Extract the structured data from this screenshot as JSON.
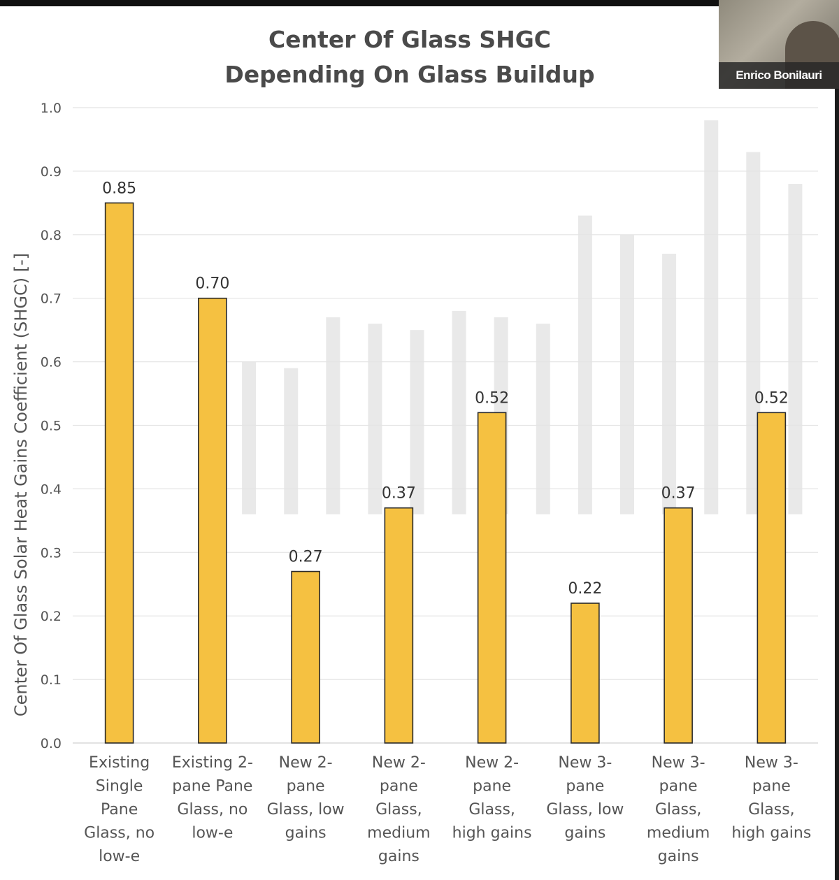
{
  "title_line1": "Center Of Glass SHGC",
  "title_line2": "Depending On Glass Buildup",
  "webcam": {
    "participant_name": "Enrico Bonilauri"
  },
  "chart_data": {
    "type": "bar",
    "title": "Center Of Glass SHGC Depending On Glass Buildup",
    "ylabel": "Center Of Glass Solar Heat Gains Coefficient (SHGC) [-]",
    "xlabel": "",
    "ylim": [
      0,
      1.0
    ],
    "yticks": [
      "0.0",
      "0.1",
      "0.2",
      "0.3",
      "0.4",
      "0.5",
      "0.6",
      "0.7",
      "0.8",
      "0.9",
      "1.0"
    ],
    "grid": true,
    "categories": [
      [
        "Existing",
        "Single",
        "Pane",
        "Glass, no",
        "low-e"
      ],
      [
        "Existing 2-",
        "pane Pane",
        "Glass, no",
        "low-e"
      ],
      [
        "New 2-",
        "pane",
        "Glass, low",
        "gains"
      ],
      [
        "New 2-",
        "pane",
        "Glass,",
        "medium",
        "gains"
      ],
      [
        "New 2-",
        "pane",
        "Glass,",
        "high gains"
      ],
      [
        "New 3-",
        "pane",
        "Glass, low",
        "gains"
      ],
      [
        "New 3-",
        "pane",
        "Glass,",
        "medium",
        "gains"
      ],
      [
        "New 3-",
        "pane",
        "Glass,",
        "high gains"
      ]
    ],
    "values": [
      0.85,
      0.7,
      0.27,
      0.37,
      0.52,
      0.22,
      0.37,
      0.52
    ],
    "value_labels": [
      "0.85",
      "0.70",
      "0.27",
      "0.37",
      "0.52",
      "0.22",
      "0.37",
      "0.52"
    ],
    "bar_color": "#f5c141",
    "bar_edge_color": "#2a2a2a",
    "ghost_bar_color": "#e9e9e9",
    "ghost_bar_values": [
      0.61,
      0.6,
      0.59,
      0.67,
      0.66,
      0.65,
      0.68,
      0.67,
      0.66,
      0.83,
      0.8,
      0.77,
      0.98,
      0.93,
      0.88
    ]
  }
}
